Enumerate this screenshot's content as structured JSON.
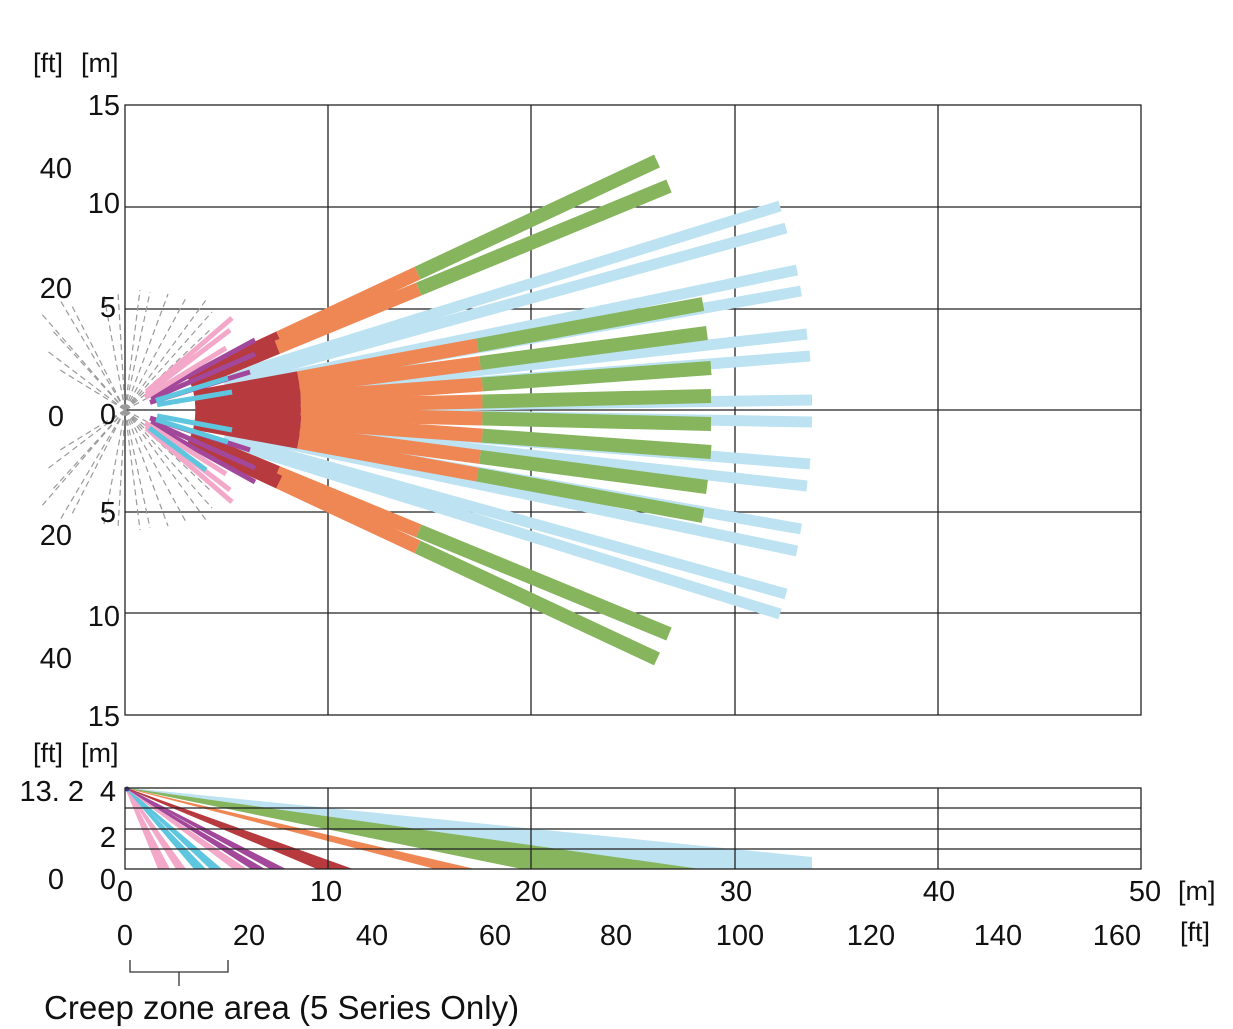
{
  "top_view": {
    "unit_labels": {
      "ft": "[ft]",
      "m": "[m]"
    },
    "m_ticks": [
      "15",
      "10",
      "5",
      "0",
      "5",
      "10",
      "15"
    ],
    "ft_ticks": [
      "40",
      "20",
      "0",
      "20",
      "40"
    ]
  },
  "side_view": {
    "unit_labels": {
      "ft": "[ft]",
      "m": "[m]"
    },
    "m_ticks": [
      "4",
      "2",
      "0"
    ],
    "ft_ticks": [
      "13. 2",
      "0"
    ]
  },
  "x_axis": {
    "m_ticks": [
      "0",
      "10",
      "20",
      "30",
      "40",
      "50"
    ],
    "m_unit": "[m]",
    "ft_ticks": [
      "0",
      "20",
      "40",
      "60",
      "80",
      "100",
      "120",
      "140",
      "160"
    ],
    "ft_unit": "[ft]"
  },
  "creep_zone_label": "Creep zone area (5 Series Only)",
  "colors": {
    "light_blue": "#bde3f2",
    "green": "#86b55d",
    "orange": "#ef8755",
    "dark_red": "#b73a3e",
    "purple": "#a2479a",
    "cyan": "#5fc6df",
    "pink": "#f3a8c9",
    "creep_gray": "#9a9a9a"
  }
}
